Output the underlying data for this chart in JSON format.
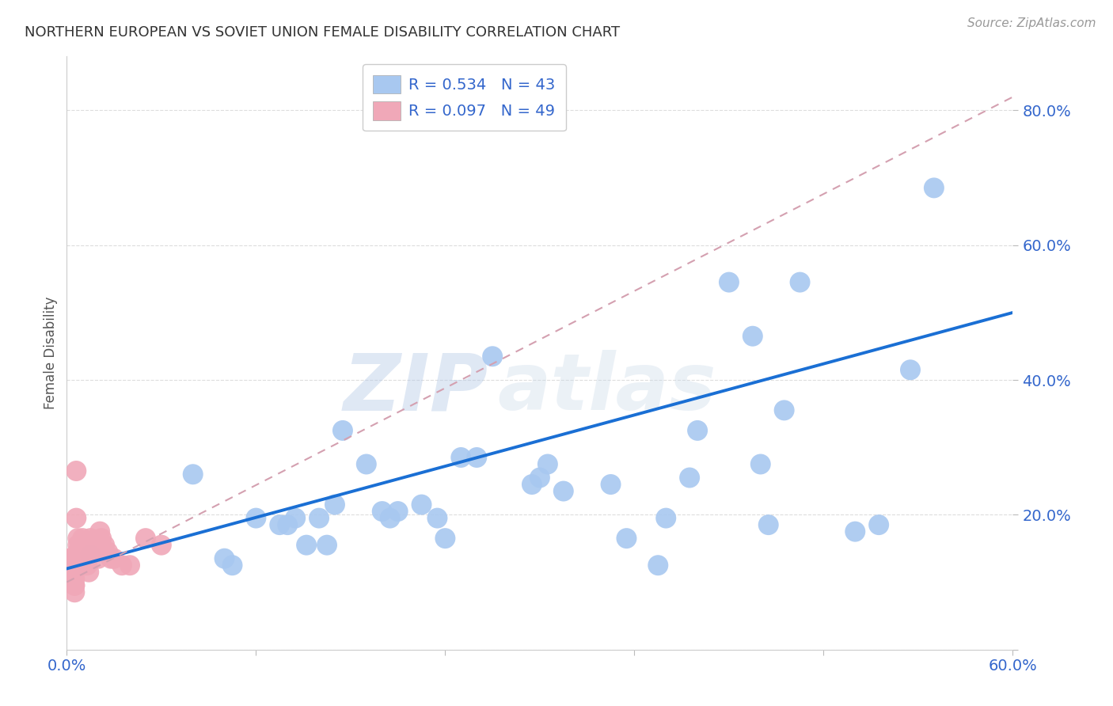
{
  "title": "NORTHERN EUROPEAN VS SOVIET UNION FEMALE DISABILITY CORRELATION CHART",
  "source": "Source: ZipAtlas.com",
  "ylabel": "Female Disability",
  "xlim": [
    0.0,
    0.6
  ],
  "ylim": [
    0.0,
    0.88
  ],
  "northern_R": 0.534,
  "northern_N": 43,
  "soviet_R": 0.097,
  "soviet_N": 49,
  "northern_color": "#a8c8f0",
  "soviet_color": "#f0a8b8",
  "northern_line_color": "#1a6fd4",
  "soviet_line_color": "#d4a0b0",
  "northern_x": [
    0.015,
    0.08,
    0.1,
    0.105,
    0.12,
    0.135,
    0.14,
    0.145,
    0.152,
    0.16,
    0.165,
    0.17,
    0.175,
    0.19,
    0.2,
    0.205,
    0.21,
    0.225,
    0.235,
    0.24,
    0.25,
    0.26,
    0.27,
    0.295,
    0.3,
    0.305,
    0.315,
    0.345,
    0.355,
    0.375,
    0.38,
    0.395,
    0.4,
    0.42,
    0.435,
    0.44,
    0.445,
    0.455,
    0.465,
    0.5,
    0.515,
    0.535,
    0.55
  ],
  "northern_y": [
    0.14,
    0.26,
    0.135,
    0.125,
    0.195,
    0.185,
    0.185,
    0.195,
    0.155,
    0.195,
    0.155,
    0.215,
    0.325,
    0.275,
    0.205,
    0.195,
    0.205,
    0.215,
    0.195,
    0.165,
    0.285,
    0.285,
    0.435,
    0.245,
    0.255,
    0.275,
    0.235,
    0.245,
    0.165,
    0.125,
    0.195,
    0.255,
    0.325,
    0.545,
    0.465,
    0.275,
    0.185,
    0.355,
    0.545,
    0.175,
    0.185,
    0.415,
    0.685
  ],
  "soviet_x": [
    0.001,
    0.001,
    0.001,
    0.001,
    0.003,
    0.003,
    0.003,
    0.003,
    0.004,
    0.004,
    0.004,
    0.005,
    0.005,
    0.005,
    0.005,
    0.006,
    0.006,
    0.007,
    0.007,
    0.007,
    0.008,
    0.008,
    0.008,
    0.009,
    0.009,
    0.01,
    0.01,
    0.011,
    0.011,
    0.011,
    0.012,
    0.013,
    0.014,
    0.015,
    0.016,
    0.017,
    0.018,
    0.019,
    0.02,
    0.021,
    0.022,
    0.024,
    0.026,
    0.028,
    0.03,
    0.035,
    0.04,
    0.05,
    0.06
  ],
  "soviet_y": [
    0.135,
    0.125,
    0.115,
    0.105,
    0.135,
    0.125,
    0.115,
    0.115,
    0.115,
    0.115,
    0.105,
    0.105,
    0.095,
    0.095,
    0.085,
    0.265,
    0.195,
    0.165,
    0.155,
    0.145,
    0.135,
    0.135,
    0.125,
    0.125,
    0.125,
    0.165,
    0.155,
    0.145,
    0.145,
    0.135,
    0.125,
    0.125,
    0.115,
    0.165,
    0.155,
    0.155,
    0.145,
    0.145,
    0.135,
    0.175,
    0.165,
    0.155,
    0.145,
    0.135,
    0.135,
    0.125,
    0.125,
    0.165,
    0.155
  ],
  "watermark_zip": "ZIP",
  "watermark_atlas": "atlas",
  "background_color": "#ffffff",
  "grid_color": "#dddddd",
  "blue_trendline_x0": 0.0,
  "blue_trendline_y0": 0.12,
  "blue_trendline_x1": 0.6,
  "blue_trendline_y1": 0.5,
  "pink_trendline_x0": 0.0,
  "pink_trendline_y0": 0.1,
  "pink_trendline_x1": 0.6,
  "pink_trendline_y1": 0.82
}
